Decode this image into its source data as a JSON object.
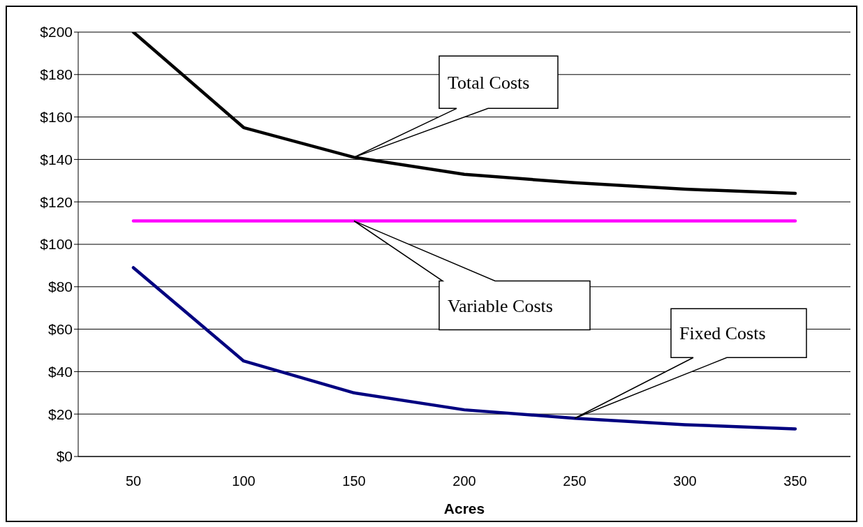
{
  "chart_data": {
    "type": "line",
    "xlabel": "Acres",
    "categories": [
      "50",
      "100",
      "150",
      "200",
      "250",
      "300",
      "350"
    ],
    "series": [
      {
        "color": "#000000",
        "values": [
          200,
          155,
          141,
          133,
          129,
          126,
          124
        ]
      },
      {
        "color": "#ff00ff",
        "values": [
          111,
          111,
          111,
          111,
          111,
          111,
          111
        ]
      },
      {
        "color": "#000080",
        "values": [
          89,
          45,
          30,
          22,
          18,
          15,
          13
        ]
      }
    ],
    "annotations": [
      "Total Costs",
      "Variable Costs",
      "Fixed Costs"
    ],
    "ylim": [
      0,
      200
    ],
    "yticks": [
      {
        "value": 0,
        "label": "$0"
      },
      {
        "value": 20,
        "label": "$20"
      },
      {
        "value": 40,
        "label": "$40"
      },
      {
        "value": 60,
        "label": "$60"
      },
      {
        "value": 80,
        "label": "$80"
      },
      {
        "value": 100,
        "label": "$100"
      },
      {
        "value": 120,
        "label": "$120"
      },
      {
        "value": 140,
        "label": "$140"
      },
      {
        "value": 160,
        "label": "$160"
      },
      {
        "value": 180,
        "label": "$180"
      },
      {
        "value": 200,
        "label": "$200"
      }
    ],
    "grid": "y",
    "legend": false,
    "marker": "none",
    "line_style": "solid"
  }
}
